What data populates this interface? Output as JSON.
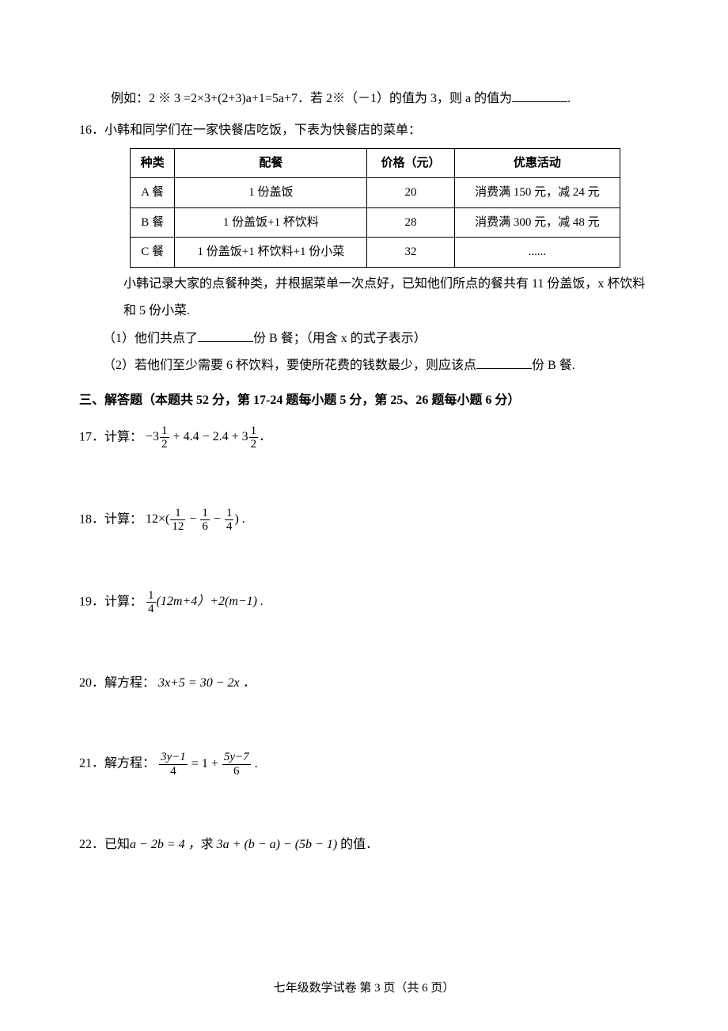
{
  "q15": {
    "example": "例如：2 ※ 3 =2×3+(2+3)a+1=5a+7．若 2※（－1）的值为 3，则 a 的值为",
    "period": "."
  },
  "q16": {
    "intro": "16．小韩和同学们在一家快餐店吃饭，下表为快餐店的菜单：",
    "table": {
      "headers": [
        "种类",
        "配餐",
        "价格（元）",
        "优惠活动"
      ],
      "rows": [
        [
          "A 餐",
          "1 份盖饭",
          "20",
          "消费满 150 元，减 24 元"
        ],
        [
          "B 餐",
          "1 份盖饭+1 杯饮料",
          "28",
          "消费满 300 元，减 48 元"
        ],
        [
          "C 餐",
          "1 份盖饭+1 杯饮料+1 份小菜",
          "32",
          "......"
        ]
      ]
    },
    "note_l1": "小韩记录大家的点餐种类，并根据菜单一次点好，已知他们所点的餐共有 11 份盖饭，x 杯饮料",
    "note_l2": "和 5 份小菜.",
    "sub1_a": "（1）他们共点了",
    "sub1_b": "份 B 餐；（用含 x 的式子表示）",
    "sub2_a": "（2）若他们至少需要 6 杯饮料，要使所花费的钱数最少，则应该点",
    "sub2_b": "份 B 餐."
  },
  "section3": "三、解答题（本题共 52 分，第 17-24 题每小题 5 分，第 25、26 题每小题 6 分）",
  "q17": {
    "label": "17．计算：",
    "n1": "1",
    "d1": "2",
    "mid": " + 4.4 − 2.4 + 3",
    "n2": "1",
    "d2": "2",
    "end": "．",
    "lead": "−3"
  },
  "q18": {
    "label": "18．计算：",
    "lead": "12×(",
    "n1": "1",
    "d1": "12",
    "m1": " − ",
    "n2": "1",
    "d2": "6",
    "m2": " − ",
    "n3": "1",
    "d3": "4",
    "end": ") ."
  },
  "q19": {
    "label": "19．计算：",
    "n1": "1",
    "d1": "4",
    "mid": "(12m+4）+2(m−1) ."
  },
  "q20": {
    "label": "20．解方程：",
    "expr": "3x+5 = 30 − 2x ．"
  },
  "q21": {
    "label": "21．解方程：",
    "n1": "3y−1",
    "d1": "4",
    "mid": " = 1 + ",
    "n2": "5y−7",
    "d2": "6",
    "end": " ."
  },
  "q22": {
    "label": "22．已知",
    "cond": "a − 2b = 4 ，",
    "ask": "求 ",
    "expr": "3a + (b − a) − (5b − 1) ",
    "tail": "的值．"
  },
  "footer": "七年级数学试卷  第 3 页（共 6 页）"
}
